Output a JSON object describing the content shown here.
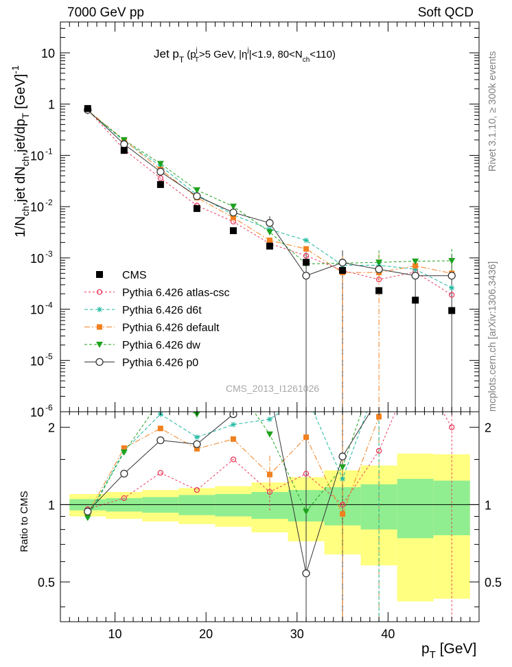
{
  "header": {
    "left": "7000 GeV pp",
    "right": "Soft QCD",
    "plot_title_main": "Jet p",
    "plot_title_sub_T": "T",
    "plot_title_rest": "(p",
    "plot_title_j": "j",
    "plot_title_mid": ">5 GeV, |η",
    "plot_title_end1": "|<1.9, 80<N",
    "plot_title_ch": "ch",
    "plot_title_end2": "<110)"
  },
  "side": {
    "rivet": "Rivet 3.1.10, ≥ 300k events",
    "mcplots": "mcplots.cern.ch [arXiv:1306.3436]"
  },
  "watermark": "CMS_2013_I1261026",
  "axes": {
    "ylabel_main": "1/N_ch,jet dN_ch,jet/dp_T [GeV]^-1",
    "ylabel_parts": [
      "1/N",
      "ch",
      ",jet dN",
      "ch",
      ",jet/dp",
      "T",
      " [GeV]",
      "-1"
    ],
    "ylabel_ratio": "Ratio to CMS",
    "xlabel": "p",
    "xlabel_sub": "T",
    "xlabel_unit": " [GeV]",
    "xticks": [
      "10",
      "20",
      "30",
      "40"
    ],
    "ymain_ticks": [
      "10",
      "1",
      "10",
      "10",
      "10",
      "10",
      "10",
      "10"
    ],
    "ymain_exps": [
      "",
      "",
      "-1",
      "-2",
      "-3",
      "-4",
      "-5",
      "-6"
    ],
    "yratio_ticks": [
      "2",
      "1",
      "0.5"
    ]
  },
  "chart_data": {
    "type": "scatter",
    "x_range": [
      4,
      50
    ],
    "main_y_range_log": [
      1e-06,
      40
    ],
    "ratio_y_range_log": [
      0.35,
      2.3
    ],
    "x": [
      7,
      11,
      15,
      19,
      23,
      27,
      31,
      35,
      39,
      43,
      47
    ],
    "cms": {
      "name": "CMS",
      "values": [
        0.82,
        0.125,
        0.027,
        0.0092,
        0.0034,
        0.0017,
        0.00082,
        0.00057,
        0.00023,
        0.00015,
        9.4e-05
      ],
      "band_inner": [
        0.05,
        0.06,
        0.07,
        0.09,
        0.1,
        0.12,
        0.14,
        0.17,
        0.2,
        0.26,
        0.24
      ],
      "band_outer": [
        0.1,
        0.12,
        0.14,
        0.16,
        0.18,
        0.22,
        0.28,
        0.36,
        0.42,
        0.58,
        0.57
      ]
    },
    "legend": [
      "CMS",
      "Pythia 6.426 atlas-csc",
      "Pythia 6.426 d6t",
      "Pythia 6.426 default",
      "Pythia 6.426 dw",
      "Pythia 6.426 p0"
    ],
    "series": [
      {
        "name": "Pythia 6.426 atlas-csc",
        "color": "#e8375a",
        "marker": "open-circle-small",
        "dash": "3,3",
        "values": [
          0.78,
          0.13,
          0.036,
          0.0105,
          0.0051,
          0.0019,
          0.0011,
          0.00057,
          0.00038,
          0.00053,
          0.00019
        ],
        "ratio": [
          0.96,
          1.06,
          1.33,
          1.14,
          1.5,
          1.12,
          1.32,
          1.0,
          1.62,
          3.5,
          2.0
        ]
      },
      {
        "name": "Pythia 6.426 d6t",
        "color": "#1fb8a0",
        "marker": "asterisk",
        "dash": "5,3",
        "values": [
          0.74,
          0.19,
          0.062,
          0.017,
          0.0069,
          0.0036,
          0.0022,
          0.00072,
          0.00072,
          0.0006,
          0.00026
        ],
        "ratio": [
          0.9,
          1.62,
          2.25,
          1.83,
          2.05,
          2.15,
          2.68,
          1.26,
          3.1,
          4.0,
          2.8
        ]
      },
      {
        "name": "Pythia 6.426 default",
        "color": "#f08020",
        "marker": "square",
        "dash": "8,3,2,3",
        "values": [
          0.76,
          0.2,
          0.053,
          0.015,
          0.0061,
          0.0022,
          0.0015,
          0.00052,
          0.00052,
          0.0007,
          0.0005
        ],
        "ratio": [
          0.92,
          1.66,
          1.98,
          1.65,
          1.8,
          1.31,
          1.83,
          0.92,
          2.2,
          4.5,
          5.0
        ]
      },
      {
        "name": "Pythia 6.426 dw",
        "color": "#1ea21e",
        "marker": "triangle-down",
        "dash": "4,3",
        "values": [
          0.73,
          0.2,
          0.069,
          0.021,
          0.0101,
          0.0032,
          0.00076,
          0.00079,
          0.00082,
          0.00086,
          0.00088
        ],
        "ratio": [
          0.89,
          1.6,
          2.55,
          2.25,
          3.0,
          1.88,
          0.94,
          1.4,
          3.6,
          5.5,
          9.0
        ]
      },
      {
        "name": "Pythia 6.426 p0",
        "color": "#333333",
        "marker": "open-circle",
        "dash": "",
        "values": [
          0.77,
          0.165,
          0.048,
          0.016,
          0.0077,
          0.0048,
          0.00045,
          0.00081,
          0.0006,
          0.00045,
          0.00045
        ],
        "ratio": [
          0.94,
          1.32,
          1.78,
          1.72,
          2.25,
          2.8,
          0.54,
          1.54,
          2.6,
          3.0,
          4.8
        ]
      }
    ]
  }
}
